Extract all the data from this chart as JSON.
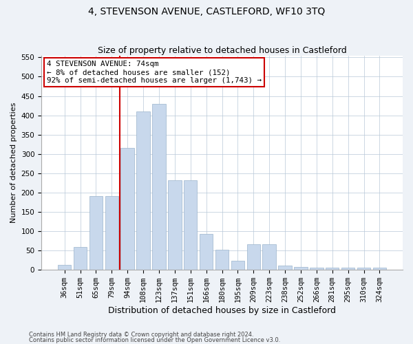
{
  "title": "4, STEVENSON AVENUE, CASTLEFORD, WF10 3TQ",
  "subtitle": "Size of property relative to detached houses in Castleford",
  "xlabel": "Distribution of detached houses by size in Castleford",
  "ylabel": "Number of detached properties",
  "categories": [
    "36sqm",
    "51sqm",
    "65sqm",
    "79sqm",
    "94sqm",
    "108sqm",
    "123sqm",
    "137sqm",
    "151sqm",
    "166sqm",
    "180sqm",
    "195sqm",
    "209sqm",
    "223sqm",
    "238sqm",
    "252sqm",
    "266sqm",
    "281sqm",
    "295sqm",
    "310sqm",
    "324sqm"
  ],
  "values": [
    12,
    58,
    190,
    190,
    315,
    410,
    430,
    232,
    232,
    92,
    52,
    22,
    65,
    65,
    10,
    7,
    5,
    5,
    5,
    5,
    5
  ],
  "bar_color": "#c8d8ec",
  "bar_edgecolor": "#9ab4cc",
  "vline_x_index": 3.5,
  "vline_color": "#cc0000",
  "annotation_text": "4 STEVENSON AVENUE: 74sqm\n← 8% of detached houses are smaller (152)\n92% of semi-detached houses are larger (1,743) →",
  "annotation_box_edgecolor": "#cc0000",
  "annotation_box_facecolor": "#ffffff",
  "ylim": [
    0,
    555
  ],
  "yticks": [
    0,
    50,
    100,
    150,
    200,
    250,
    300,
    350,
    400,
    450,
    500,
    550
  ],
  "footer1": "Contains HM Land Registry data © Crown copyright and database right 2024.",
  "footer2": "Contains public sector information licensed under the Open Government Licence v3.0.",
  "bg_color": "#eef2f7",
  "plot_bg_color": "#ffffff",
  "title_fontsize": 10,
  "subtitle_fontsize": 9,
  "xlabel_fontsize": 9,
  "ylabel_fontsize": 8,
  "grid_color": "#b8c8d8",
  "tick_fontsize": 7.5
}
